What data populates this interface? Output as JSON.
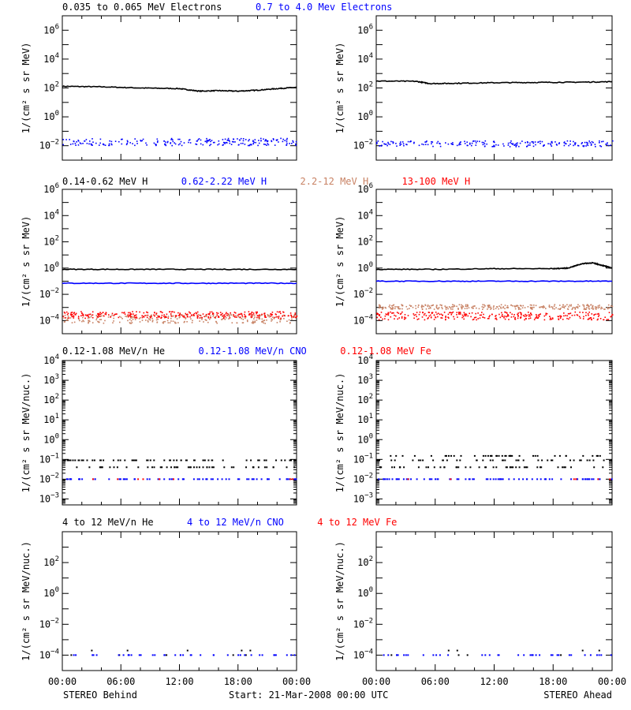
{
  "colors": {
    "black": "#000000",
    "blue": "#0000ff",
    "tan": "#c88264",
    "red": "#ff0000"
  },
  "footer": {
    "left": "STEREO Behind",
    "center": "Start: 21-Mar-2008 00:00 UTC",
    "right": "STEREO Ahead"
  },
  "chart_data": [
    {
      "type": "scatter",
      "panel": "electrons-behind",
      "xlim": [
        "00:00",
        "24:00"
      ],
      "yscale": "log",
      "ylim": [
        0.001,
        10000000
      ],
      "ylabel": "1/(cm² s sr MeV)",
      "ytick_exponents": [
        -2,
        0,
        2,
        4,
        6
      ],
      "header": [
        {
          "text": "0.035 to 0.065 MeV Electrons",
          "color": "black"
        },
        {
          "text": "0.7 to 4.0 Mev Electrons",
          "color": "blue"
        }
      ],
      "series": [
        {
          "name": "0.035 to 0.065 MeV Electrons",
          "color": "black",
          "style": "line",
          "x": [
            0,
            4,
            8,
            12,
            14,
            16,
            18,
            20,
            22,
            24
          ],
          "y": [
            130,
            120,
            100,
            90,
            60,
            65,
            60,
            70,
            90,
            110
          ]
        },
        {
          "name": "0.7 to 4.0 Mev Electrons",
          "color": "blue",
          "style": "dots",
          "base": 0.02,
          "spread": 0.25,
          "density": 220
        }
      ]
    },
    {
      "type": "scatter",
      "panel": "electrons-ahead",
      "xlim": [
        "00:00",
        "24:00"
      ],
      "yscale": "log",
      "ylim": [
        0.001,
        10000000
      ],
      "ylabel": "1/(cm² s sr MeV)",
      "ytick_exponents": [
        -2,
        0,
        2,
        4,
        6
      ],
      "header": [],
      "series": [
        {
          "name": "0.035 to 0.065 MeV Electrons",
          "color": "black",
          "style": "line",
          "x": [
            0,
            4,
            5.5,
            8,
            12,
            16,
            20,
            24
          ],
          "y": [
            300,
            290,
            200,
            210,
            230,
            240,
            250,
            270
          ]
        },
        {
          "name": "0.7 to 4.0 Mev Electrons",
          "color": "blue",
          "style": "dots",
          "base": 0.015,
          "spread": 0.2,
          "density": 200
        }
      ]
    },
    {
      "type": "scatter",
      "panel": "protons-behind",
      "xlim": [
        "00:00",
        "24:00"
      ],
      "yscale": "log",
      "ylim": [
        1e-05,
        1000000
      ],
      "ylabel": "1/(cm² s sr MeV)",
      "ytick_exponents": [
        -4,
        -2,
        0,
        2,
        4,
        6
      ],
      "header": [
        {
          "text": "0.14-0.62 MeV H",
          "color": "black"
        },
        {
          "text": "0.62-2.22 MeV H",
          "color": "blue"
        },
        {
          "text": "2.2-12 MeV H",
          "color": "tan"
        },
        {
          "text": "13-100 MeV H",
          "color": "red"
        }
      ],
      "series": [
        {
          "name": "0.14-0.62 MeV H",
          "color": "black",
          "style": "line",
          "x": [
            0,
            6,
            12,
            18,
            24
          ],
          "y": [
            0.8,
            0.8,
            0.8,
            0.8,
            0.8
          ]
        },
        {
          "name": "0.62-2.22 MeV H",
          "color": "blue",
          "style": "line",
          "x": [
            0,
            6,
            12,
            18,
            24
          ],
          "y": [
            0.07,
            0.07,
            0.07,
            0.07,
            0.07
          ]
        },
        {
          "name": "2.2-12 MeV H",
          "color": "tan",
          "style": "dots",
          "base": 0.00015,
          "spread": 0.35,
          "density": 260
        },
        {
          "name": "13-100 MeV H",
          "color": "red",
          "style": "dots",
          "base": 0.0003,
          "spread": 0.25,
          "density": 300
        }
      ]
    },
    {
      "type": "scatter",
      "panel": "protons-ahead",
      "xlim": [
        "00:00",
        "24:00"
      ],
      "yscale": "log",
      "ylim": [
        1e-05,
        1000000
      ],
      "ylabel": "1/(cm² s sr MeV)",
      "ytick_exponents": [
        -4,
        -2,
        0,
        2,
        4,
        6
      ],
      "header": [],
      "series": [
        {
          "name": "0.14-0.62 MeV H",
          "color": "black",
          "style": "line",
          "x": [
            0,
            6,
            12,
            18,
            19.5,
            21,
            22,
            23,
            24
          ],
          "y": [
            0.8,
            0.8,
            0.9,
            0.9,
            1.0,
            2.2,
            2.5,
            1.6,
            1.0
          ]
        },
        {
          "name": "0.62-2.22 MeV H",
          "color": "blue",
          "style": "line",
          "x": [
            0,
            6,
            12,
            18,
            24
          ],
          "y": [
            0.1,
            0.1,
            0.1,
            0.1,
            0.1
          ]
        },
        {
          "name": "2.2-12 MeV H",
          "color": "tan",
          "style": "dots",
          "base": 0.0012,
          "spread": 0.18,
          "density": 300
        },
        {
          "name": "13-100 MeV H",
          "color": "red",
          "style": "dots",
          "base": 0.00025,
          "spread": 0.3,
          "density": 300
        }
      ]
    },
    {
      "type": "scatter",
      "panel": "heavy-low-behind",
      "xlim": [
        "00:00",
        "24:00"
      ],
      "yscale": "log",
      "ylim": [
        0.0005,
        10000
      ],
      "ylabel": "1/(cm² s sr MeV/nuc.)",
      "ytick_exponents": [
        -3,
        -2,
        -1,
        0,
        1,
        2,
        3,
        4
      ],
      "header": [
        {
          "text": "0.12-1.08 MeV/n He",
          "color": "black"
        },
        {
          "text": "0.12-1.08 MeV/n CNO",
          "color": "blue"
        },
        {
          "text": "0.12-1.08 MeV Fe",
          "color": "red"
        }
      ],
      "series": [
        {
          "name": "0.12-1.08 MeV/n He",
          "color": "black",
          "style": "sparse",
          "levels": [
            0.04,
            0.09
          ],
          "density": 110
        },
        {
          "name": "0.12-1.08 MeV/n CNO",
          "color": "blue",
          "style": "sparse",
          "levels": [
            0.01
          ],
          "density": 70
        },
        {
          "name": "0.12-1.08 MeV Fe",
          "color": "red",
          "style": "sparse",
          "levels": [
            0.01
          ],
          "density": 8
        }
      ]
    },
    {
      "type": "scatter",
      "panel": "heavy-low-ahead",
      "xlim": [
        "00:00",
        "24:00"
      ],
      "yscale": "log",
      "ylim": [
        0.0005,
        10000
      ],
      "ylabel": "1/(cm² s sr MeV/nuc.)",
      "ytick_exponents": [
        -3,
        -2,
        -1,
        0,
        1,
        2,
        3,
        4
      ],
      "header": [],
      "series": [
        {
          "name": "0.12-1.08 MeV/n He",
          "color": "black",
          "style": "sparse",
          "levels": [
            0.04,
            0.09,
            0.15
          ],
          "density": 130
        },
        {
          "name": "0.12-1.08 MeV/n CNO",
          "color": "blue",
          "style": "sparse",
          "levels": [
            0.01
          ],
          "density": 75
        },
        {
          "name": "0.12-1.08 MeV Fe",
          "color": "red",
          "style": "sparse",
          "levels": [
            0.01
          ],
          "density": 6
        }
      ]
    },
    {
      "type": "scatter",
      "panel": "heavy-high-behind",
      "xlim": [
        "00:00",
        "24:00"
      ],
      "yscale": "log",
      "ylim": [
        1e-05,
        10000
      ],
      "ylabel": "1/(cm² s sr MeV/nuc.)",
      "ytick_exponents": [
        -4,
        -2,
        0,
        2
      ],
      "header": [
        {
          "text": "4 to 12 MeV/n He",
          "color": "black"
        },
        {
          "text": "4 to 12 MeV/n CNO",
          "color": "blue"
        },
        {
          "text": "4 to 12 MeV Fe",
          "color": "red"
        }
      ],
      "series": [
        {
          "name": "4 to 12 MeV/n He",
          "color": "black",
          "style": "sparse",
          "levels": [
            0.0001,
            0.0002
          ],
          "density": 10
        },
        {
          "name": "4 to 12 MeV/n CNO",
          "color": "blue",
          "style": "sparse",
          "levels": [
            0.0001
          ],
          "density": 40
        }
      ]
    },
    {
      "type": "scatter",
      "panel": "heavy-high-ahead",
      "xlim": [
        "00:00",
        "24:00"
      ],
      "yscale": "log",
      "ylim": [
        1e-05,
        10000
      ],
      "ylabel": "1/(cm² s sr MeV/nuc.)",
      "ytick_exponents": [
        -4,
        -2,
        0,
        2
      ],
      "header": [],
      "series": [
        {
          "name": "4 to 12 MeV/n He",
          "color": "black",
          "style": "sparse",
          "levels": [
            0.0001,
            0.0002
          ],
          "density": 8
        },
        {
          "name": "4 to 12 MeV/n CNO",
          "color": "blue",
          "style": "sparse",
          "levels": [
            0.0001
          ],
          "density": 38
        }
      ]
    }
  ],
  "x_tick_labels": [
    "00:00",
    "06:00",
    "12:00",
    "18:00",
    "00:00"
  ]
}
